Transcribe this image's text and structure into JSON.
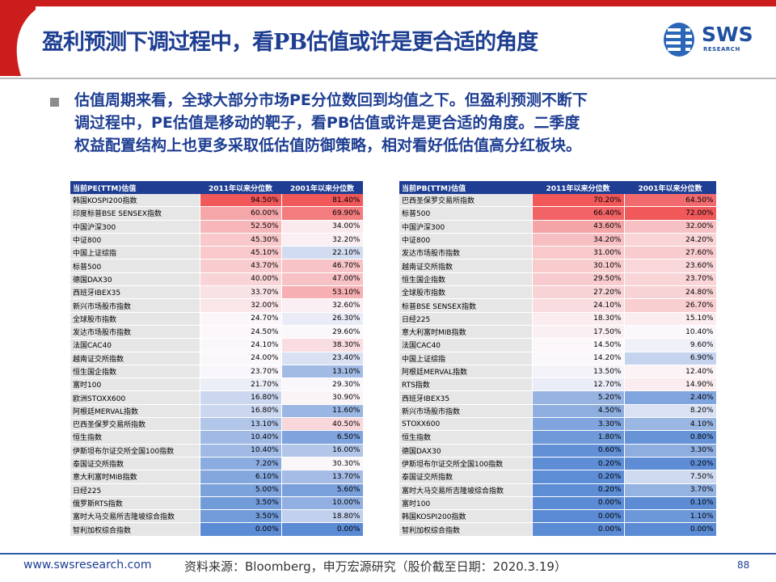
{
  "header": {
    "title": "盈利预测下调过程中，看PB估值或许是更合适的角度",
    "logo_text": "SWS",
    "logo_sub": "RESEARCH"
  },
  "bullet": {
    "lines": [
      "估值周期来看，全球大部分市场PE分位数回到均值之下。但盈利预测不断下",
      "调过程中，PE估值是移动的靶子，看PB估值或许是更合适的角度。二季度",
      "权益配置结构上也更多采取低估值防御策略，相对看好低估值高分红板块。"
    ]
  },
  "pe_table": {
    "headers": [
      "当前PE(TTM)估值",
      "2011年以来分位数",
      "2001年以来分位数"
    ],
    "rows": [
      {
        "name": "韩国KOSPI200指数",
        "v2011": "94.50%",
        "v2001": "81.40%"
      },
      {
        "name": "印度标普BSE SENSEX指数",
        "v2011": "60.00%",
        "v2001": "69.90%"
      },
      {
        "name": "中国沪深300",
        "v2011": "52.50%",
        "v2001": "34.00%"
      },
      {
        "name": "中证800",
        "v2011": "45.30%",
        "v2001": "32.20%"
      },
      {
        "name": "中国上证综指",
        "v2011": "45.10%",
        "v2001": "22.10%"
      },
      {
        "name": "标普500",
        "v2011": "43.70%",
        "v2001": "46.70%"
      },
      {
        "name": "德国DAX30",
        "v2011": "40.00%",
        "v2001": "47.00%"
      },
      {
        "name": "西班牙IBEX35",
        "v2011": "33.70%",
        "v2001": "53.10%"
      },
      {
        "name": "新兴市场股市指数",
        "v2011": "32.00%",
        "v2001": "32.60%"
      },
      {
        "name": "全球股市指数",
        "v2011": "24.70%",
        "v2001": "26.30%"
      },
      {
        "name": "发达市场股市指数",
        "v2011": "24.50%",
        "v2001": "29.60%"
      },
      {
        "name": "法国CAC40",
        "v2011": "24.10%",
        "v2001": "38.30%"
      },
      {
        "name": "越南证交所指数",
        "v2011": "24.00%",
        "v2001": "23.40%"
      },
      {
        "name": "恒生国企指数",
        "v2011": "23.70%",
        "v2001": "13.10%"
      },
      {
        "name": "富时100",
        "v2011": "21.70%",
        "v2001": "29.30%"
      },
      {
        "name": "欧洲STOXX600",
        "v2011": "16.80%",
        "v2001": "30.90%"
      },
      {
        "name": "阿根廷MERVAL指数",
        "v2011": "16.80%",
        "v2001": "11.60%"
      },
      {
        "name": "巴西圣保罗交易所指数",
        "v2011": "13.10%",
        "v2001": "40.50%"
      },
      {
        "name": "恒生指数",
        "v2011": "10.40%",
        "v2001": "6.50%"
      },
      {
        "name": "伊斯坦布尔证交所全国100指数",
        "v2011": "10.40%",
        "v2001": "16.00%"
      },
      {
        "name": "泰国证交所指数",
        "v2011": "7.20%",
        "v2001": "30.30%"
      },
      {
        "name": "意大利富时MIB指数",
        "v2011": "6.10%",
        "v2001": "13.70%"
      },
      {
        "name": "日经225",
        "v2011": "5.00%",
        "v2001": "5.60%"
      },
      {
        "name": "俄罗斯RTS指数",
        "v2011": "3.50%",
        "v2001": "10.00%"
      },
      {
        "name": "富时大马交易所吉隆坡综合指数",
        "v2011": "3.50%",
        "v2001": "18.80%"
      },
      {
        "name": "智利加权综合指数",
        "v2011": "0.00%",
        "v2001": "0.00%"
      }
    ]
  },
  "pb_table": {
    "headers": [
      "当前PB(TTM)估值",
      "2011年以来分位数",
      "2001年以来分位数"
    ],
    "rows": [
      {
        "name": "巴西圣保罗交易所指数",
        "v2011": "70.20%",
        "v2001": "64.50%"
      },
      {
        "name": "标普500",
        "v2011": "66.40%",
        "v2001": "72.00%"
      },
      {
        "name": "中国沪深300",
        "v2011": "43.60%",
        "v2001": "32.00%"
      },
      {
        "name": "中证800",
        "v2011": "34.20%",
        "v2001": "24.20%"
      },
      {
        "name": "发达市场股市指数",
        "v2011": "31.00%",
        "v2001": "27.60%"
      },
      {
        "name": "越南证交所指数",
        "v2011": "30.10%",
        "v2001": "23.60%"
      },
      {
        "name": "恒生国企指数",
        "v2011": "29.50%",
        "v2001": "23.70%"
      },
      {
        "name": "全球股市指数",
        "v2011": "27.20%",
        "v2001": "24.80%"
      },
      {
        "name": "标普BSE SENSEX指数",
        "v2011": "24.10%",
        "v2001": "26.70%"
      },
      {
        "name": "日经225",
        "v2011": "18.30%",
        "v2001": "15.10%"
      },
      {
        "name": "意大利富时MIB指数",
        "v2011": "17.50%",
        "v2001": "10.40%"
      },
      {
        "name": "法国CAC40",
        "v2011": "14.50%",
        "v2001": "9.60%"
      },
      {
        "name": "中国上证综指",
        "v2011": "14.20%",
        "v2001": "6.90%"
      },
      {
        "name": "阿根廷MERVAL指数",
        "v2011": "13.50%",
        "v2001": "12.40%"
      },
      {
        "name": "RTS指数",
        "v2011": "12.70%",
        "v2001": "14.90%"
      },
      {
        "name": "西班牙IBEX35",
        "v2011": "5.20%",
        "v2001": "2.40%"
      },
      {
        "name": "新兴市场股市指数",
        "v2011": "4.50%",
        "v2001": "8.20%"
      },
      {
        "name": "STOXX600",
        "v2011": "3.30%",
        "v2001": "4.10%"
      },
      {
        "name": "恒生指数",
        "v2011": "1.80%",
        "v2001": "0.80%"
      },
      {
        "name": "德国DAX30",
        "v2011": "0.60%",
        "v2001": "3.30%"
      },
      {
        "name": "伊斯坦布尔证交所全国100指数",
        "v2011": "0.20%",
        "v2001": "0.20%"
      },
      {
        "name": "泰国证交所指数",
        "v2011": "0.20%",
        "v2001": "7.50%"
      },
      {
        "name": "富时大马交易所吉隆坡综合指数",
        "v2011": "0.20%",
        "v2001": "3.70%"
      },
      {
        "name": "富时100",
        "v2011": "0.00%",
        "v2001": "0.10%"
      },
      {
        "name": "韩国KOSPI200指数",
        "v2011": "0.00%",
        "v2001": "1.10%"
      },
      {
        "name": "智利加权综合指数",
        "v2011": "0.00%",
        "v2001": "0.00%"
      }
    ]
  },
  "footer": {
    "url": "www.swsresearch.com",
    "source": "资料来源：Bloomberg，申万宏源研究（股价截至日期：2020.3.19）",
    "page": "88"
  },
  "colors": {
    "title_blue": "#1e3e92",
    "accent_red": "#cc1d1d",
    "header_bg": "#1f3e93",
    "heat_high": "#f0585a",
    "heat_mid": "#fbf8fb",
    "heat_low": "#5b8bd4"
  }
}
